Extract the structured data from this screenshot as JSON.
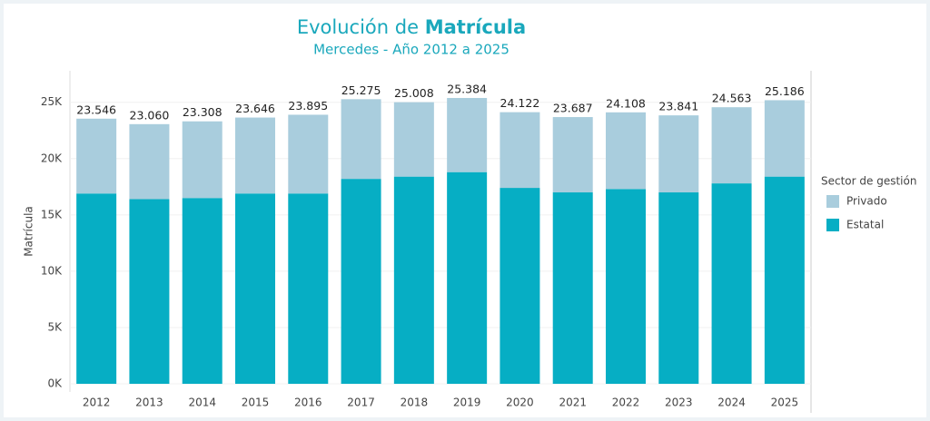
{
  "chart_data": {
    "type": "stacked-bar",
    "title": {
      "prefix": "Evolución de",
      "emphasis": "Matrícula"
    },
    "subtitle": "Mercedes - Año 2012 a 2025",
    "y_label": "Matrícula",
    "legend_title": "Sector de gestión",
    "legend_position": "right",
    "categories": [
      "2012",
      "2013",
      "2014",
      "2015",
      "2016",
      "2017",
      "2018",
      "2019",
      "2020",
      "2021",
      "2022",
      "2023",
      "2024",
      "2025"
    ],
    "series": [
      {
        "name": "Estatal",
        "color": "#06aec4",
        "values": [
          16900,
          16400,
          16500,
          16900,
          16900,
          18200,
          18400,
          18800,
          17400,
          17000,
          17300,
          17000,
          17800,
          18400
        ]
      },
      {
        "name": "Privado",
        "color": "#a9cddd",
        "values": [
          6646,
          6660,
          6808,
          6746,
          6995,
          7075,
          6608,
          6584,
          6722,
          6687,
          6808,
          6841,
          6763,
          6786
        ]
      }
    ],
    "totals": {
      "values": [
        23546,
        23060,
        23308,
        23646,
        23895,
        25275,
        25008,
        25384,
        24122,
        23687,
        24108,
        23841,
        24563,
        25186
      ],
      "value_labels": [
        "23.546",
        "23.060",
        "23.308",
        "23.646",
        "23.895",
        "25.275",
        "25.008",
        "25.384",
        "24.122",
        "23.687",
        "24.108",
        "23.841",
        "24.563",
        "25.186"
      ]
    },
    "ylim": [
      0,
      27800
    ],
    "yticks": [
      {
        "value": 0,
        "label": "0K"
      },
      {
        "value": 5000,
        "label": "5K"
      },
      {
        "value": 10000,
        "label": "10K"
      },
      {
        "value": 15000,
        "label": "15K"
      },
      {
        "value": 20000,
        "label": "20K"
      },
      {
        "value": 25000,
        "label": "25K"
      }
    ],
    "grid": true
  }
}
